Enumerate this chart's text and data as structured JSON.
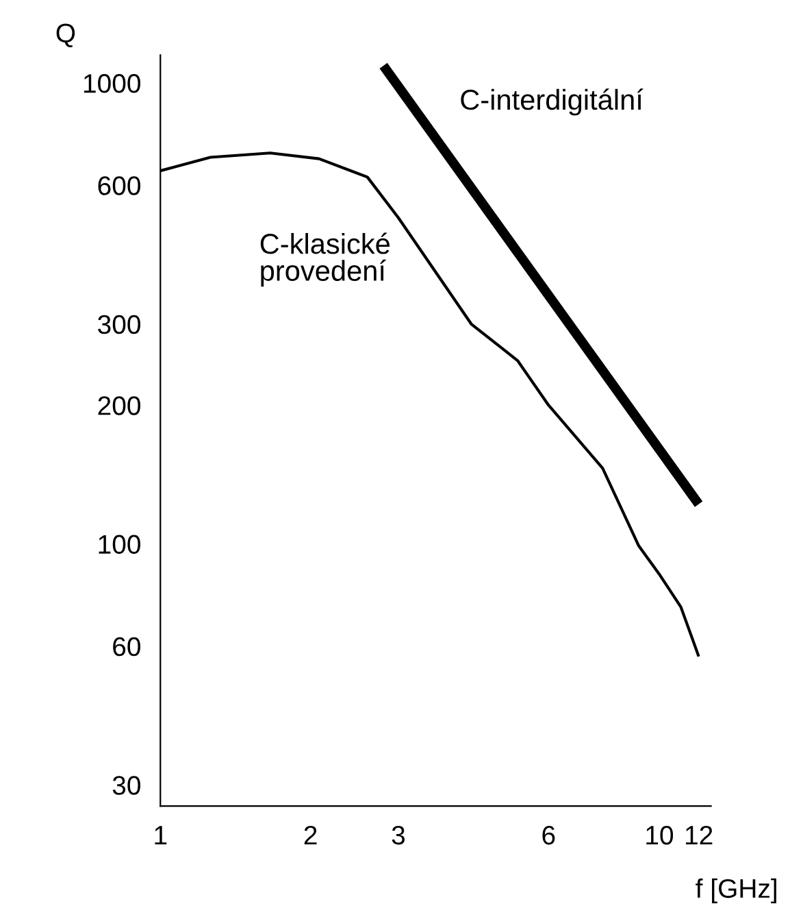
{
  "chart_data": {
    "type": "line",
    "xlabel": "f [GHz]",
    "ylabel": "Q",
    "xlim": [
      1,
      12.7
    ],
    "ylim": [
      27,
      1150
    ],
    "xticks": [
      1,
      2,
      3,
      6,
      10,
      12
    ],
    "yticks": [
      30,
      60,
      100,
      200,
      300,
      600,
      1000
    ],
    "log": "xy",
    "grid": false,
    "legend": false,
    "marker": "none",
    "line_style": "solid",
    "series": [
      {
        "name": "C-klasické\nprovedení",
        "color": "#000000",
        "x": [
          1,
          1.26,
          1.66,
          2.08,
          2.6,
          3,
          4.2,
          5.2,
          6,
          7.7,
          9.1,
          10,
          11.05,
          12
        ],
        "values": [
          645,
          690,
          705,
          685,
          625,
          510,
          300,
          250,
          200,
          146,
          99,
          86,
          73,
          57
        ]
      },
      {
        "name": "C-interdigitální",
        "color": "#000000",
        "x": [
          2.8,
          12
        ],
        "values": [
          1090,
          122
        ]
      }
    ]
  }
}
